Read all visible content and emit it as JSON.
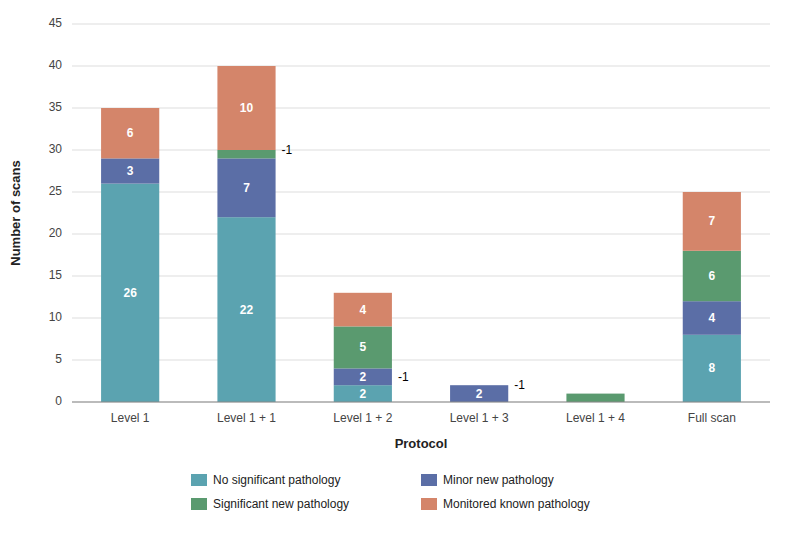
{
  "chart_data": {
    "type": "bar",
    "stacked": true,
    "categories": [
      "Level 1",
      "Level 1 + 1",
      "Level 1 + 2",
      "Level 1 + 3",
      "Level 1 + 4",
      "Full scan"
    ],
    "series": [
      {
        "name": "No significant pathology",
        "color": "#5ba3b0",
        "values": [
          26,
          22,
          2,
          0,
          0,
          8
        ]
      },
      {
        "name": "Minor new pathology",
        "color": "#5b6ea6",
        "values": [
          3,
          7,
          2,
          2,
          0,
          4
        ]
      },
      {
        "name": "Significant new pathology",
        "color": "#5a9a6f",
        "values": [
          0,
          1,
          5,
          0,
          1,
          6
        ]
      },
      {
        "name": "Monitored known pathology",
        "color": "#d4856a",
        "values": [
          6,
          10,
          4,
          0,
          0,
          7
        ]
      }
    ],
    "xlabel": "Protocol",
    "ylabel": "Number of scans",
    "ylim": [
      0,
      45
    ],
    "yticks": [
      0,
      5,
      10,
      15,
      20,
      25,
      30,
      35,
      40,
      45
    ],
    "grid": true,
    "legend": "bottom",
    "data_labels": true,
    "annotations": [
      {
        "text": "-1",
        "category": "Level 1 + 1",
        "y": 30.0
      },
      {
        "text": "-1",
        "category": "Level 1 + 2",
        "y": 3.0
      },
      {
        "text": "-1",
        "category": "Level 1 + 3",
        "y": 2.0
      }
    ]
  }
}
